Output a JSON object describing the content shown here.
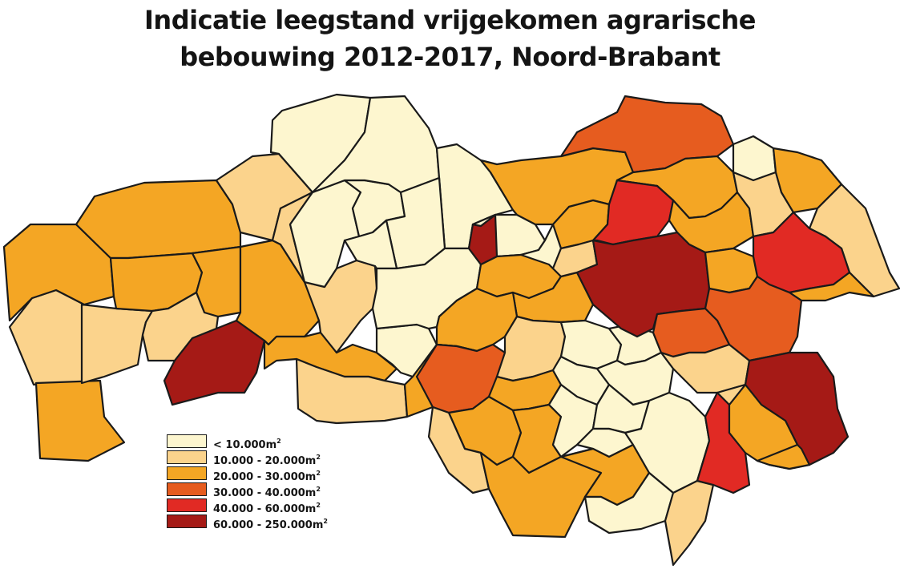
{
  "title_lines": [
    "Indicatie leegstand vrijgekomen agrarische",
    "bebouwing 2012-2017, Noord-Brabant"
  ],
  "colors": {
    "c0": "#fdf6cf",
    "c1": "#fbd38c",
    "c2": "#f4a624",
    "c3": "#e65c1f",
    "c4": "#e12a24",
    "c5": "#a51a16"
  },
  "legend": [
    {
      "label": "< 10.000m",
      "unit_exp": "2",
      "class": "c0"
    },
    {
      "label": "10.000 - 20.000m",
      "unit_exp": "2",
      "class": "c1"
    },
    {
      "label": "20.000 - 30.000m",
      "unit_exp": "2",
      "class": "c2"
    },
    {
      "label": "30.000 - 40.000m",
      "unit_exp": "2",
      "class": "c3"
    },
    {
      "label": "40.000 - 60.000m",
      "unit_exp": "2",
      "class": "c4"
    },
    {
      "label": "60.000 - 250.000m",
      "unit_exp": "2",
      "class": "c5"
    }
  ],
  "regions": [
    {
      "class": "c1"
    },
    {
      "class": "c2"
    },
    {
      "class": "c1"
    },
    {
      "class": "c2"
    },
    {
      "class": "c2"
    },
    {
      "class": "c1"
    },
    {
      "class": "c0"
    },
    {
      "class": "c2"
    },
    {
      "class": "c2"
    },
    {
      "class": "c1"
    },
    {
      "class": "c5"
    },
    {
      "class": "c2"
    },
    {
      "class": "c1"
    },
    {
      "class": "c2"
    },
    {
      "class": "c1"
    },
    {
      "class": "c0"
    },
    {
      "class": "c0"
    },
    {
      "class": "c0"
    },
    {
      "class": "c0"
    },
    {
      "class": "c0"
    },
    {
      "class": "c0"
    },
    {
      "class": "c0"
    },
    {
      "class": "c0"
    },
    {
      "class": "c0"
    },
    {
      "class": "c1"
    },
    {
      "class": "c2"
    },
    {
      "class": "c2"
    },
    {
      "class": "c2"
    },
    {
      "class": "c0"
    },
    {
      "class": "c2"
    },
    {
      "class": "c5"
    },
    {
      "class": "c0"
    },
    {
      "class": "c1"
    },
    {
      "class": "c2"
    },
    {
      "class": "c2"
    },
    {
      "class": "c3"
    },
    {
      "class": "c1"
    },
    {
      "class": "c2"
    },
    {
      "class": "c2"
    },
    {
      "class": "c1"
    },
    {
      "class": "c2"
    },
    {
      "class": "c2"
    },
    {
      "class": "c0"
    },
    {
      "class": "c0"
    },
    {
      "class": "c0"
    },
    {
      "class": "c0"
    },
    {
      "class": "c0"
    },
    {
      "class": "c0"
    },
    {
      "class": "c0"
    },
    {
      "class": "c2"
    },
    {
      "class": "c0"
    },
    {
      "class": "c0"
    },
    {
      "class": "c1"
    },
    {
      "class": "c3"
    },
    {
      "class": "c2"
    },
    {
      "class": "c4"
    },
    {
      "class": "c2"
    },
    {
      "class": "c5"
    },
    {
      "class": "c2"
    },
    {
      "class": "c0"
    },
    {
      "class": "c1"
    },
    {
      "class": "c2"
    },
    {
      "class": "c1"
    },
    {
      "class": "c4"
    },
    {
      "class": "c2"
    },
    {
      "class": "c3"
    },
    {
      "class": "c3"
    },
    {
      "class": "c1"
    },
    {
      "class": "c5"
    },
    {
      "class": "c4"
    },
    {
      "class": "c2"
    },
    {
      "class": "c2"
    },
    {
      "class": "c1"
    }
  ]
}
